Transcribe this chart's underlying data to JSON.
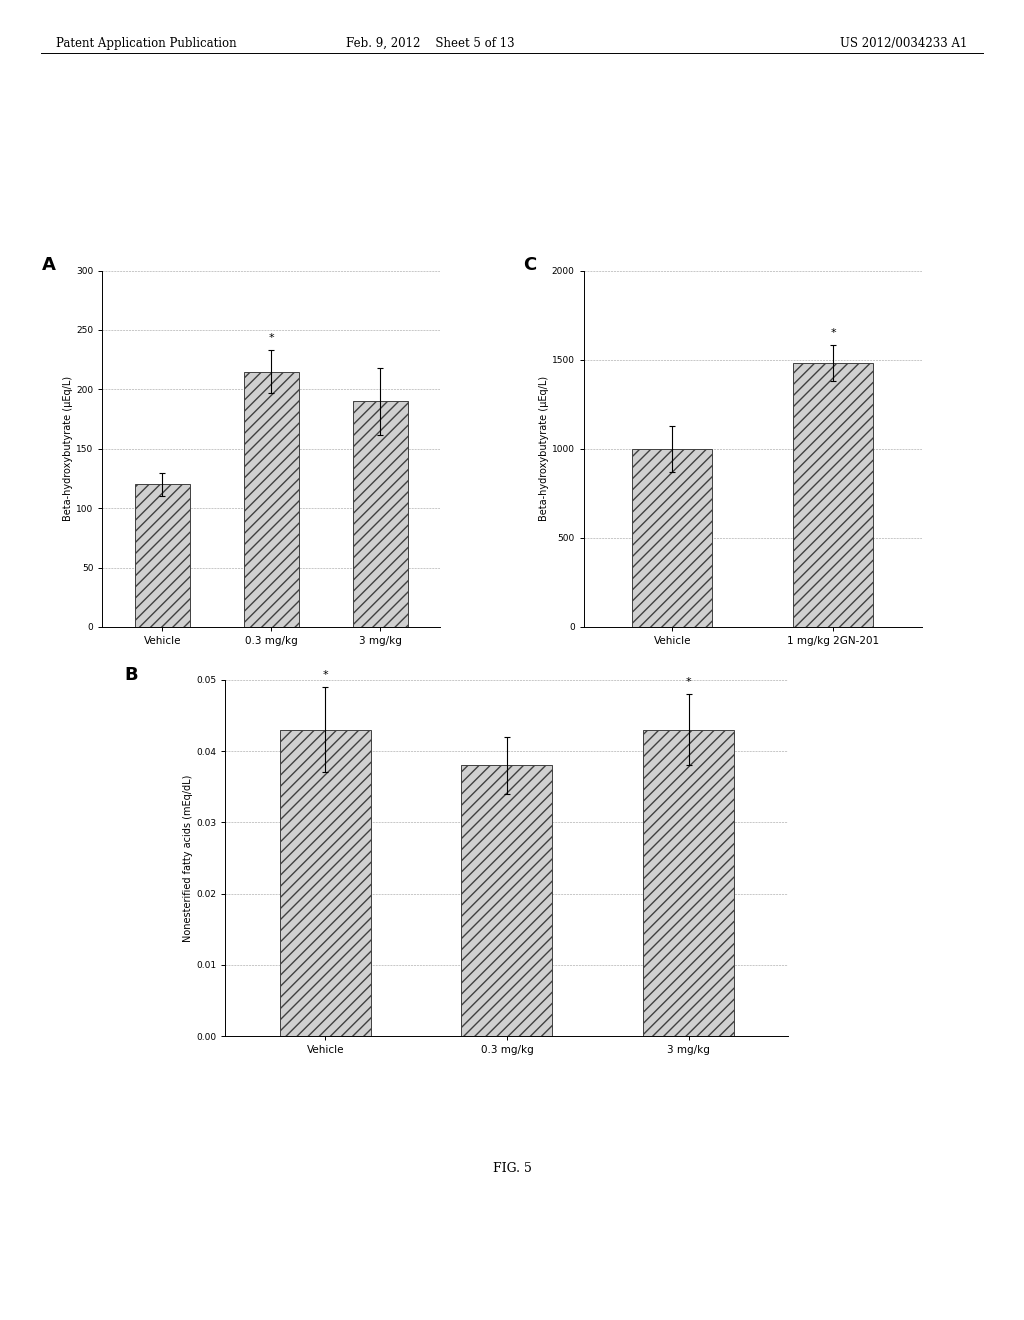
{
  "panel_A": {
    "label": "A",
    "categories": [
      "Vehicle",
      "0.3 mg/kg",
      "3 mg/kg"
    ],
    "values": [
      120,
      215,
      190
    ],
    "errors": [
      10,
      18,
      28
    ],
    "ylabel": "Beta-hydroxybutyrate (μEq/L)",
    "ylim": [
      0,
      300
    ],
    "yticks": [
      0,
      50,
      100,
      150,
      200,
      250,
      300
    ],
    "sig_bar": 1,
    "sig_marker": "*"
  },
  "panel_C": {
    "label": "C",
    "categories": [
      "Vehicle",
      "1 mg/kg 2GN-201"
    ],
    "values": [
      1000,
      1480
    ],
    "errors": [
      130,
      100
    ],
    "ylabel": "Beta-hydroxybutyrate (μEq/L)",
    "ylim": [
      0,
      2000
    ],
    "yticks": [
      0,
      500,
      1000,
      1500,
      2000
    ],
    "sig_bar": 1,
    "sig_marker": "*"
  },
  "panel_B": {
    "label": "B",
    "categories": [
      "Vehicle",
      "0.3 mg/kg",
      "3 mg/kg"
    ],
    "values": [
      0.043,
      0.038,
      0.043
    ],
    "errors": [
      0.006,
      0.004,
      0.005
    ],
    "ylabel": "Nonesterified fatty acids (mEq/dL)",
    "ylim": [
      0.0,
      0.05
    ],
    "yticks": [
      0.0,
      0.01,
      0.02,
      0.03,
      0.04,
      0.05
    ],
    "sig_bars": [
      0,
      2
    ],
    "sig_marker": "*"
  },
  "fig_label": "FIG. 5",
  "header_left": "Patent Application Publication",
  "header_center": "Feb. 9, 2012    Sheet 5 of 13",
  "header_right": "US 2012/0034233 A1",
  "bar_color": "#d0d0d0",
  "bar_edgecolor": "#404040",
  "bar_hatch": "///",
  "bar_width": 0.5,
  "grid_color": "#888888",
  "grid_linestyle": "--",
  "grid_linewidth": 0.4,
  "tick_fontsize": 6.5,
  "label_fontsize": 7.0,
  "xlabel_fontsize": 7.5,
  "panel_label_fontsize": 13
}
